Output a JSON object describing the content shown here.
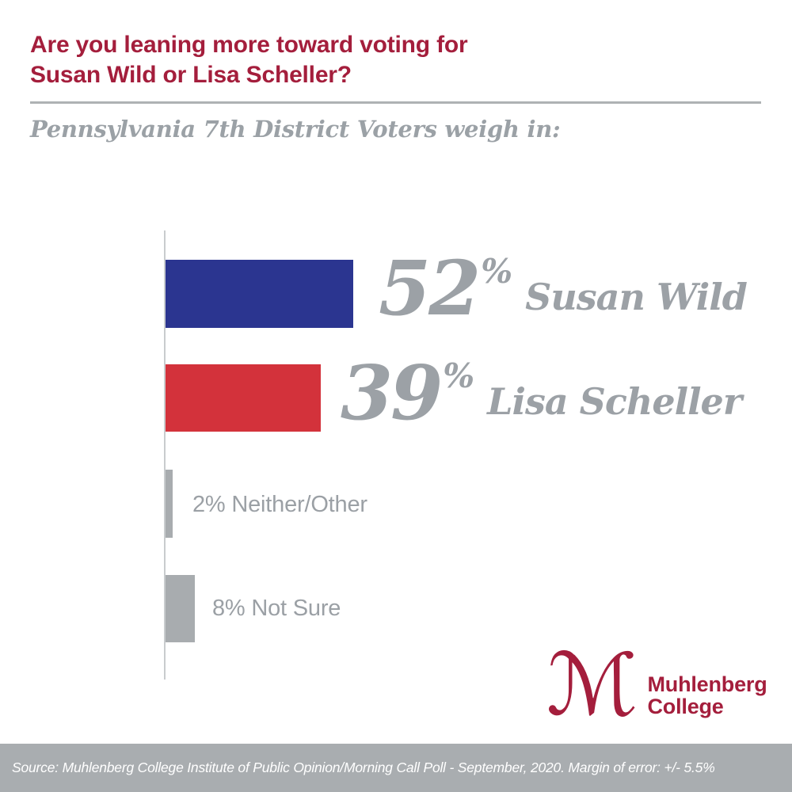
{
  "header": {
    "title_line1": "Are you leaning more toward voting for",
    "title_line2": "Susan Wild or Lisa Scheller?",
    "subtitle": "Pennsylvania 7th District Voters weigh in:"
  },
  "chart_data": {
    "type": "bar",
    "orientation": "horizontal",
    "title": "Are you leaning more toward voting for Susan Wild or Lisa Scheller?",
    "subtitle": "Pennsylvania 7th District Voters weigh in:",
    "categories": [
      "Susan Wild",
      "Lisa Scheller",
      "Neither/Other",
      "Not Sure"
    ],
    "values": [
      52,
      39,
      2,
      8
    ],
    "unit": "%",
    "percent_sign": "%",
    "xlim": [
      0,
      100
    ],
    "grid": false,
    "legend": "none",
    "series": [
      {
        "name": "Susan Wild",
        "value": 52,
        "value_display": "52",
        "color": "#2B3590",
        "label_text": "52% Susan Wild"
      },
      {
        "name": "Lisa Scheller",
        "value": 39,
        "value_display": "39",
        "color": "#D3323B",
        "label_text": "39% Lisa Scheller"
      },
      {
        "name": "Neither/Other",
        "value": 2,
        "value_display": "2",
        "color": "#A8ACAF",
        "label_text": "2% Neither/Other"
      },
      {
        "name": "Not Sure",
        "value": 8,
        "value_display": "8",
        "color": "#A8ACAF",
        "label_text": "8% Not Sure"
      }
    ]
  },
  "logo": {
    "monogram": "ℳ",
    "line1": "Muhlenberg",
    "line2": "College"
  },
  "footer": {
    "text": "Source: Muhlenberg College Institute of Public Opinion/Morning Call Poll - September, 2020. Margin of error: +/- 5.5%"
  },
  "colors": {
    "brand_crimson": "#A41E3C",
    "bar_blue": "#2B3590",
    "bar_red": "#D3323B",
    "bar_gray": "#A8ACAF",
    "big_label_gray": "#9CA1A6",
    "small_label_gray": "#9BA0A5",
    "divider_gray": "#AEB2B4",
    "axis_gray": "#C9CCCE",
    "footer_bg": "#A9ADB0",
    "footer_text": "#FFFFFF"
  }
}
